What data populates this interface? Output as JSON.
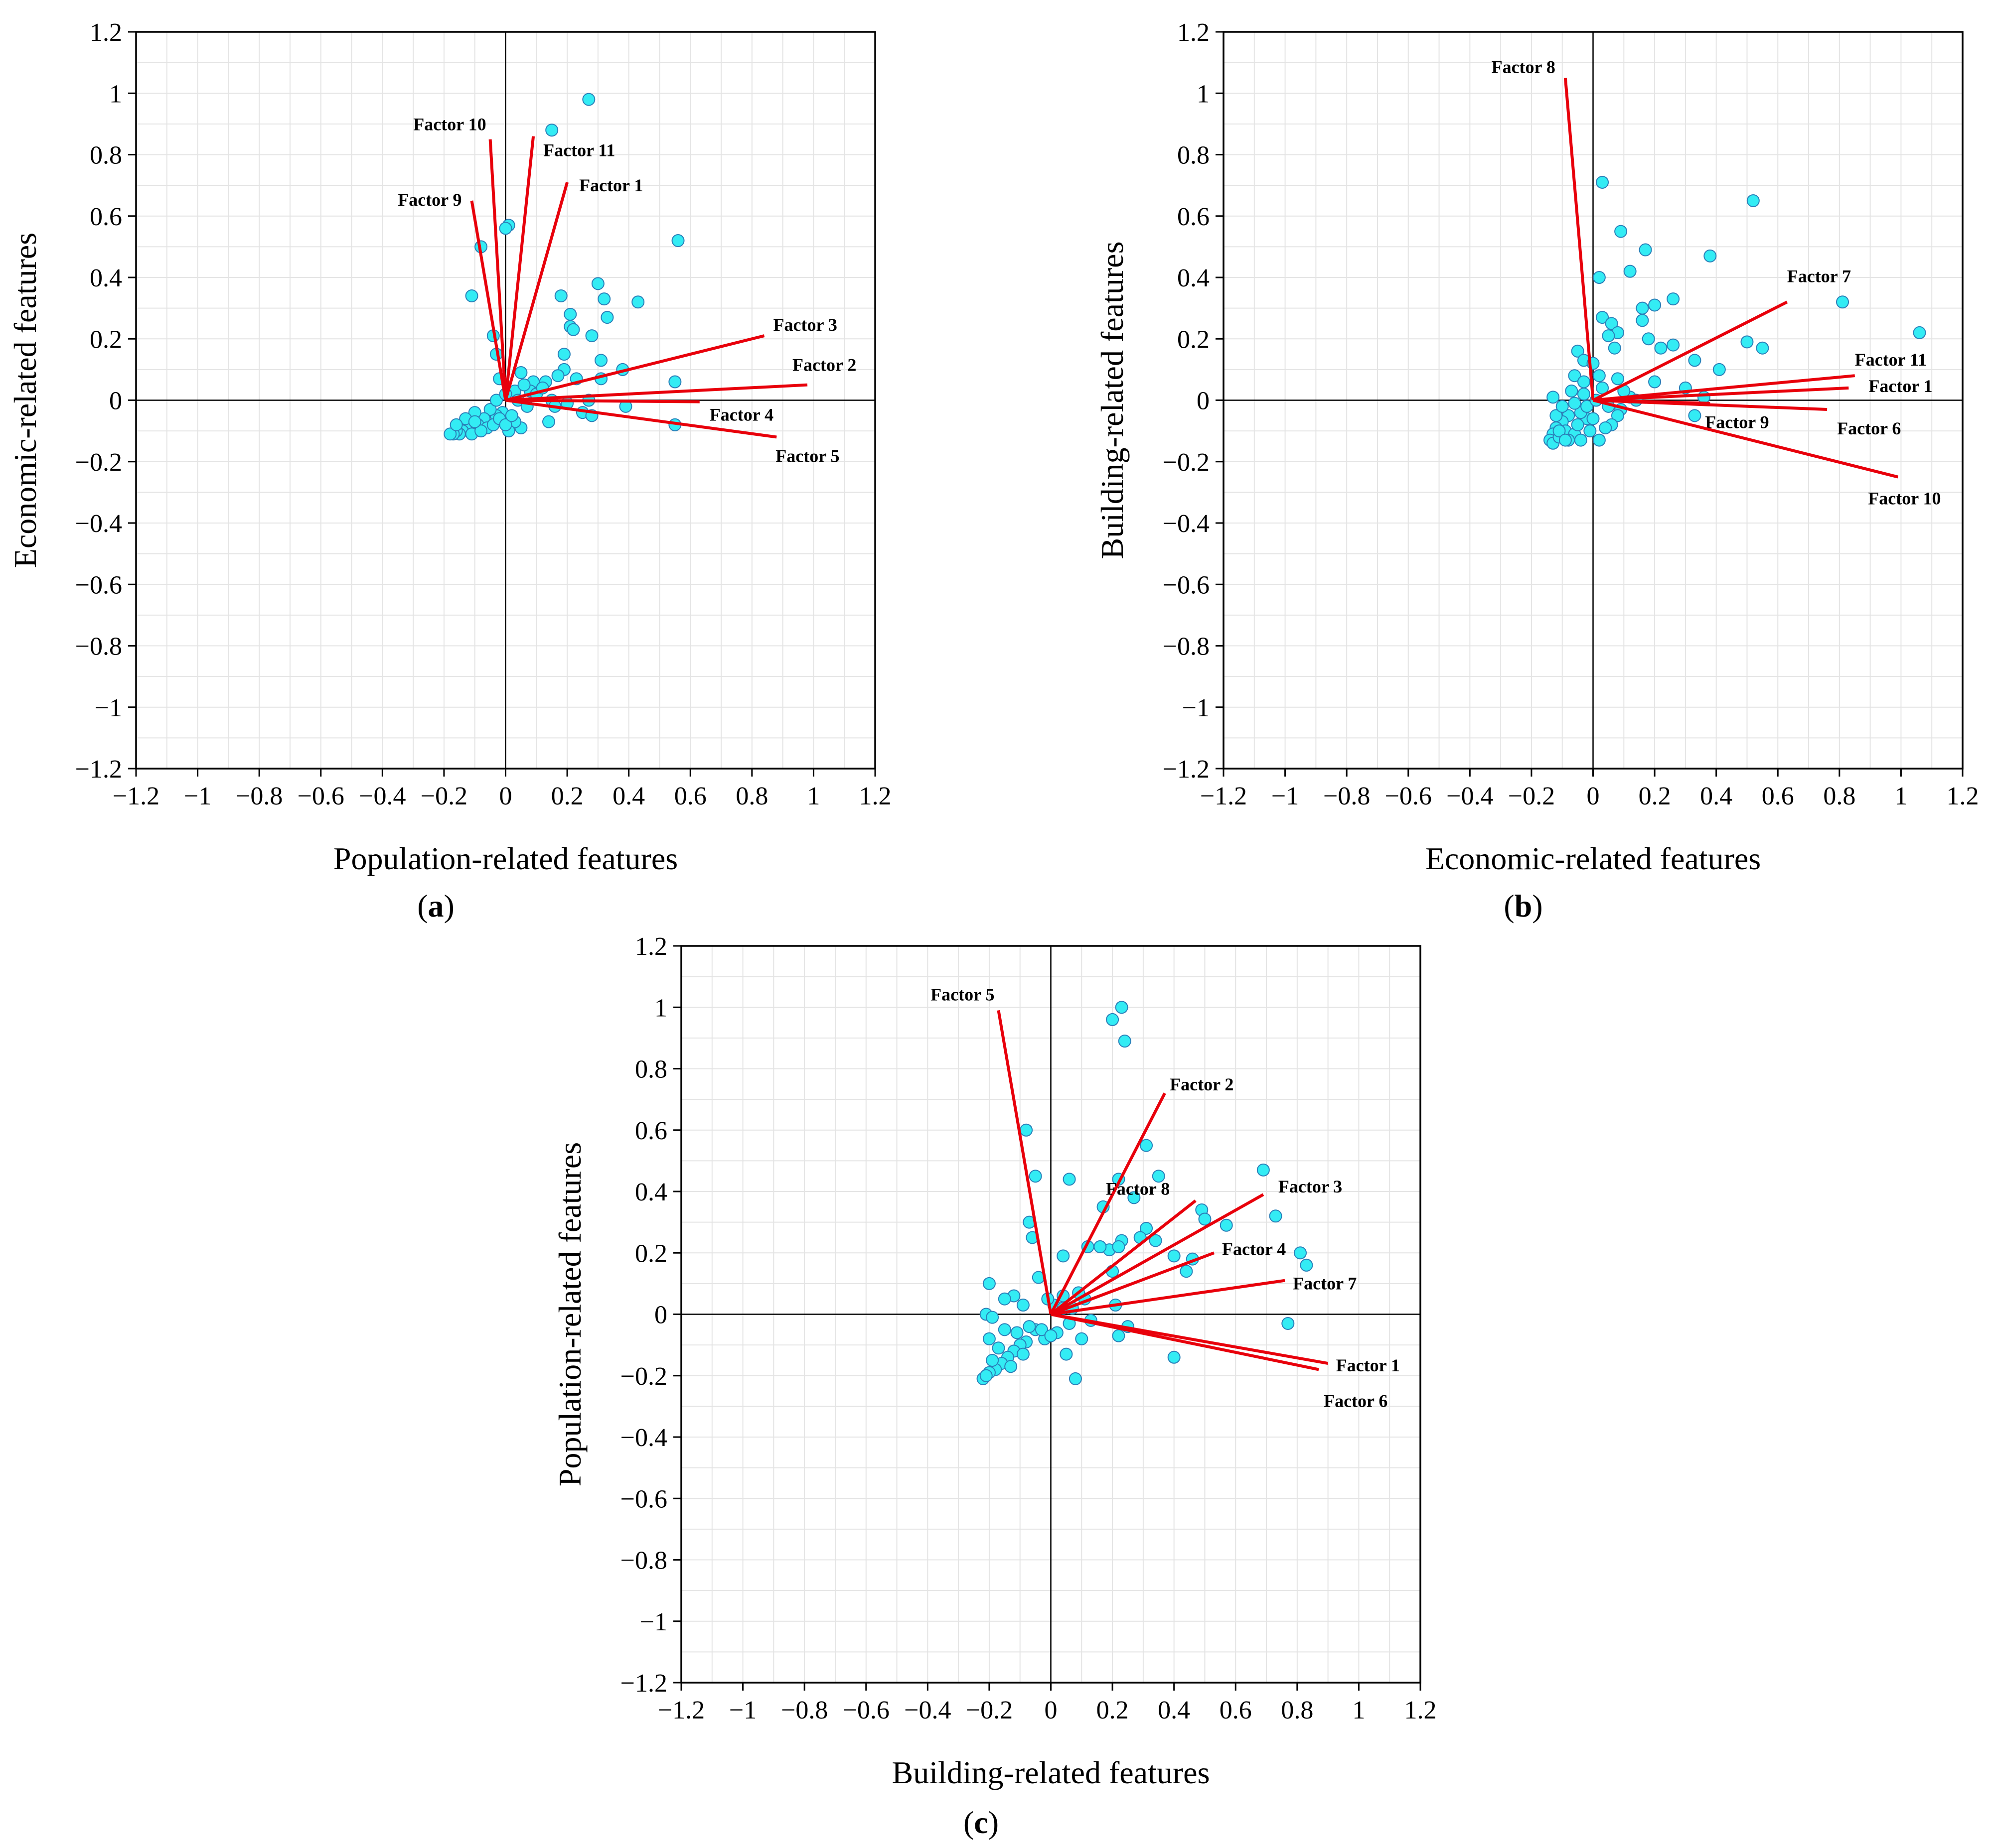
{
  "chart_data": [
    {
      "type": "scatter",
      "panel": "a",
      "panel_label": "a",
      "xlabel": "Population-related features",
      "ylabel": "Economic-related features",
      "xlim": [
        -1.2,
        1.2
      ],
      "ylim": [
        -1.2,
        1.2
      ],
      "ticks": [
        -1.2,
        -1,
        -0.8,
        -0.6,
        -0.4,
        -0.2,
        0,
        0.2,
        0.4,
        0.6,
        0.8,
        1,
        1.2
      ],
      "tick_labels": [
        "−1.2",
        "−1",
        "−0.8",
        "−0.6",
        "−0.4",
        "−0.2",
        "0",
        "0.2",
        "0.4",
        "0.6",
        "0.8",
        "1",
        "1.2"
      ],
      "grid": true,
      "vectors": [
        {
          "name": "Factor 10",
          "x": -0.05,
          "y": 0.85
        },
        {
          "name": "Factor 11",
          "x": 0.09,
          "y": 0.86
        },
        {
          "name": "Factor 1",
          "x": 0.2,
          "y": 0.71
        },
        {
          "name": "Factor 9",
          "x": -0.11,
          "y": 0.65
        },
        {
          "name": "Factor 3",
          "x": 0.84,
          "y": 0.21
        },
        {
          "name": "Factor 2",
          "x": 0.98,
          "y": 0.05
        },
        {
          "name": "Factor 4",
          "x": 0.63,
          "y": -0.005
        },
        {
          "name": "Factor 5",
          "x": 0.88,
          "y": -0.12
        }
      ],
      "points": [
        [
          0.27,
          0.98
        ],
        [
          0.15,
          0.88
        ],
        [
          0.01,
          0.57
        ],
        [
          0.0,
          0.56
        ],
        [
          0.56,
          0.52
        ],
        [
          -0.08,
          0.5
        ],
        [
          0.3,
          0.38
        ],
        [
          -0.11,
          0.34
        ],
        [
          0.18,
          0.34
        ],
        [
          0.32,
          0.33
        ],
        [
          0.43,
          0.32
        ],
        [
          0.21,
          0.28
        ],
        [
          0.33,
          0.27
        ],
        [
          0.21,
          0.24
        ],
        [
          0.22,
          0.23
        ],
        [
          -0.04,
          0.21
        ],
        [
          0.28,
          0.21
        ],
        [
          0.19,
          0.15
        ],
        [
          -0.03,
          0.15
        ],
        [
          0.31,
          0.13
        ],
        [
          0.38,
          0.1
        ],
        [
          0.19,
          0.1
        ],
        [
          0.17,
          0.08
        ],
        [
          0.05,
          0.09
        ],
        [
          0.09,
          0.06
        ],
        [
          0.13,
          0.06
        ],
        [
          0.23,
          0.07
        ],
        [
          0.31,
          0.07
        ],
        [
          0.55,
          0.06
        ],
        [
          -0.02,
          0.07
        ],
        [
          0.08,
          0.03
        ],
        [
          0.03,
          0.03
        ],
        [
          0.1,
          0.02
        ],
        [
          0.15,
          0.0
        ],
        [
          0.27,
          0.0
        ],
        [
          0.39,
          -0.02
        ],
        [
          0.25,
          -0.04
        ],
        [
          0.28,
          -0.05
        ],
        [
          0.14,
          -0.07
        ],
        [
          0.55,
          -0.08
        ],
        [
          0.05,
          -0.09
        ],
        [
          0.03,
          -0.07
        ],
        [
          0.01,
          -0.1
        ],
        [
          -0.01,
          -0.04
        ],
        [
          -0.03,
          -0.05
        ],
        [
          -0.05,
          -0.03
        ],
        [
          -0.07,
          -0.06
        ],
        [
          -0.09,
          -0.08
        ],
        [
          -0.1,
          -0.04
        ],
        [
          -0.12,
          -0.07
        ],
        [
          -0.13,
          -0.09
        ],
        [
          -0.14,
          -0.1
        ],
        [
          -0.15,
          -0.11
        ],
        [
          -0.16,
          -0.1
        ],
        [
          -0.17,
          -0.11
        ],
        [
          -0.18,
          -0.11
        ],
        [
          -0.11,
          -0.11
        ],
        [
          -0.06,
          -0.09
        ],
        [
          -0.04,
          -0.08
        ],
        [
          -0.02,
          -0.06
        ],
        [
          0.0,
          -0.08
        ],
        [
          0.02,
          -0.05
        ],
        [
          -0.08,
          -0.1
        ],
        [
          -0.13,
          -0.06
        ],
        [
          -0.16,
          -0.08
        ],
        [
          -0.1,
          -0.07
        ],
        [
          0.06,
          0.05
        ],
        [
          0.12,
          0.04
        ],
        [
          0.04,
          0.0
        ],
        [
          -0.03,
          0.0
        ],
        [
          0.0,
          0.02
        ],
        [
          0.07,
          -0.02
        ],
        [
          0.16,
          -0.02
        ],
        [
          0.2,
          -0.01
        ]
      ]
    },
    {
      "type": "scatter",
      "panel": "b",
      "panel_label": "b",
      "xlabel": "Economic-related features",
      "ylabel": "Building-related features",
      "xlim": [
        -1.2,
        1.2
      ],
      "ylim": [
        -1.2,
        1.2
      ],
      "ticks": [
        -1.2,
        -1,
        -0.8,
        -0.6,
        -0.4,
        -0.2,
        0,
        0.2,
        0.4,
        0.6,
        0.8,
        1,
        1.2
      ],
      "tick_labels": [
        "−1.2",
        "−1",
        "−0.8",
        "−0.6",
        "−0.4",
        "−0.2",
        "0",
        "0.2",
        "0.4",
        "0.6",
        "0.8",
        "1",
        "1.2"
      ],
      "grid": true,
      "vectors": [
        {
          "name": "Factor 8",
          "x": -0.09,
          "y": 1.05
        },
        {
          "name": "Factor 7",
          "x": 0.63,
          "y": 0.32
        },
        {
          "name": "Factor 11",
          "x": 0.85,
          "y": 0.08
        },
        {
          "name": "Factor 1",
          "x": 0.83,
          "y": 0.04
        },
        {
          "name": "Factor 9",
          "x": 0.38,
          "y": -0.01
        },
        {
          "name": "Factor 6",
          "x": 0.76,
          "y": -0.03
        },
        {
          "name": "Factor 10",
          "x": 0.99,
          "y": -0.25
        }
      ],
      "points": [
        [
          0.03,
          0.71
        ],
        [
          0.52,
          0.65
        ],
        [
          0.09,
          0.55
        ],
        [
          0.17,
          0.49
        ],
        [
          0.38,
          0.47
        ],
        [
          0.02,
          0.4
        ],
        [
          0.12,
          0.42
        ],
        [
          0.81,
          0.32
        ],
        [
          0.26,
          0.33
        ],
        [
          0.2,
          0.31
        ],
        [
          0.16,
          0.3
        ],
        [
          0.03,
          0.27
        ],
        [
          0.06,
          0.25
        ],
        [
          1.06,
          0.22
        ],
        [
          0.08,
          0.22
        ],
        [
          0.16,
          0.26
        ],
        [
          0.05,
          0.21
        ],
        [
          0.18,
          0.2
        ],
        [
          0.5,
          0.19
        ],
        [
          0.55,
          0.17
        ],
        [
          0.22,
          0.17
        ],
        [
          0.26,
          0.18
        ],
        [
          0.07,
          0.17
        ],
        [
          -0.05,
          0.16
        ],
        [
          -0.03,
          0.13
        ],
        [
          0.0,
          0.12
        ],
        [
          0.41,
          0.1
        ],
        [
          -0.06,
          0.08
        ],
        [
          0.02,
          0.08
        ],
        [
          -0.03,
          0.06
        ],
        [
          0.2,
          0.06
        ],
        [
          0.08,
          0.07
        ],
        [
          0.03,
          0.04
        ],
        [
          0.3,
          0.04
        ],
        [
          0.33,
          0.13
        ],
        [
          0.12,
          0.01
        ],
        [
          0.36,
          0.01
        ],
        [
          -0.13,
          0.01
        ],
        [
          0.05,
          -0.02
        ],
        [
          0.09,
          -0.03
        ],
        [
          0.08,
          -0.05
        ],
        [
          0.33,
          -0.05
        ],
        [
          0.06,
          -0.08
        ],
        [
          -0.02,
          -0.06
        ],
        [
          0.04,
          -0.09
        ],
        [
          -0.04,
          -0.04
        ],
        [
          -0.08,
          -0.05
        ],
        [
          -0.1,
          -0.07
        ],
        [
          -0.12,
          -0.09
        ],
        [
          -0.13,
          -0.11
        ],
        [
          -0.14,
          -0.13
        ],
        [
          -0.13,
          -0.14
        ],
        [
          -0.11,
          -0.12
        ],
        [
          -0.09,
          -0.1
        ],
        [
          -0.06,
          -0.11
        ],
        [
          -0.04,
          -0.13
        ],
        [
          0.02,
          -0.13
        ],
        [
          -0.01,
          -0.1
        ],
        [
          0.0,
          -0.06
        ],
        [
          -0.05,
          -0.08
        ],
        [
          -0.08,
          -0.13
        ],
        [
          -0.12,
          -0.05
        ],
        [
          -0.1,
          -0.02
        ],
        [
          -0.06,
          -0.01
        ],
        [
          -0.03,
          0.02
        ],
        [
          -0.02,
          -0.02
        ],
        [
          -0.07,
          0.03
        ],
        [
          -0.11,
          -0.1
        ],
        [
          -0.09,
          -0.13
        ],
        [
          0.1,
          0.03
        ],
        [
          0.14,
          0.0
        ],
        [
          0.01,
          0.0
        ]
      ]
    },
    {
      "type": "scatter",
      "panel": "c",
      "panel_label": "c",
      "xlabel": "Building-related features",
      "ylabel": "Population-related features",
      "xlim": [
        -1.2,
        1.2
      ],
      "ylim": [
        -1.2,
        1.2
      ],
      "ticks": [
        -1.2,
        -1,
        -0.8,
        -0.6,
        -0.4,
        -0.2,
        0,
        0.2,
        0.4,
        0.6,
        0.8,
        1,
        1.2
      ],
      "tick_labels": [
        "−1.2",
        "−1",
        "−0.8",
        "−0.6",
        "−0.4",
        "−0.2",
        "0",
        "0.2",
        "0.4",
        "0.6",
        "0.8",
        "1",
        "1.2"
      ],
      "grid": true,
      "vectors": [
        {
          "name": "Factor 5",
          "x": -0.17,
          "y": 0.99
        },
        {
          "name": "Factor 2",
          "x": 0.37,
          "y": 0.72
        },
        {
          "name": "Factor 8",
          "x": 0.47,
          "y": 0.37
        },
        {
          "name": "Factor 3",
          "x": 0.69,
          "y": 0.39
        },
        {
          "name": "Factor 4",
          "x": 0.53,
          "y": 0.2
        },
        {
          "name": "Factor 7",
          "x": 0.76,
          "y": 0.11
        },
        {
          "name": "Factor 1",
          "x": 0.9,
          "y": -0.16
        },
        {
          "name": "Factor 6",
          "x": 0.87,
          "y": -0.18
        }
      ],
      "points": [
        [
          0.23,
          1.0
        ],
        [
          0.2,
          0.96
        ],
        [
          0.24,
          0.89
        ],
        [
          -0.08,
          0.6
        ],
        [
          0.31,
          0.55
        ],
        [
          -0.05,
          0.45
        ],
        [
          0.06,
          0.44
        ],
        [
          0.22,
          0.44
        ],
        [
          0.35,
          0.45
        ],
        [
          0.69,
          0.47
        ],
        [
          0.27,
          0.38
        ],
        [
          0.17,
          0.35
        ],
        [
          0.49,
          0.34
        ],
        [
          0.5,
          0.31
        ],
        [
          0.73,
          0.32
        ],
        [
          -0.07,
          0.3
        ],
        [
          0.57,
          0.29
        ],
        [
          -0.06,
          0.25
        ],
        [
          0.31,
          0.28
        ],
        [
          0.23,
          0.24
        ],
        [
          0.34,
          0.24
        ],
        [
          0.29,
          0.25
        ],
        [
          0.19,
          0.21
        ],
        [
          0.4,
          0.19
        ],
        [
          0.46,
          0.18
        ],
        [
          0.81,
          0.2
        ],
        [
          0.83,
          0.16
        ],
        [
          0.22,
          0.22
        ],
        [
          0.16,
          0.22
        ],
        [
          0.12,
          0.22
        ],
        [
          0.04,
          0.19
        ],
        [
          0.2,
          0.14
        ],
        [
          0.44,
          0.14
        ],
        [
          -0.04,
          0.12
        ],
        [
          0.11,
          0.05
        ],
        [
          0.09,
          0.07
        ],
        [
          0.04,
          0.06
        ],
        [
          -0.2,
          0.1
        ],
        [
          -0.12,
          0.06
        ],
        [
          -0.15,
          0.05
        ],
        [
          -0.09,
          0.03
        ],
        [
          -0.21,
          0.0
        ],
        [
          -0.19,
          -0.01
        ],
        [
          0.01,
          0.03
        ],
        [
          0.21,
          0.03
        ],
        [
          0.25,
          -0.04
        ],
        [
          0.22,
          -0.07
        ],
        [
          0.77,
          -0.03
        ],
        [
          0.4,
          -0.14
        ],
        [
          0.08,
          -0.21
        ],
        [
          0.05,
          -0.13
        ],
        [
          0.1,
          -0.08
        ],
        [
          0.02,
          -0.06
        ],
        [
          -0.02,
          -0.08
        ],
        [
          -0.05,
          -0.05
        ],
        [
          -0.08,
          -0.09
        ],
        [
          -0.1,
          -0.1
        ],
        [
          -0.12,
          -0.12
        ],
        [
          -0.14,
          -0.14
        ],
        [
          -0.16,
          -0.16
        ],
        [
          -0.18,
          -0.18
        ],
        [
          -0.2,
          -0.19
        ],
        [
          -0.22,
          -0.21
        ],
        [
          -0.21,
          -0.2
        ],
        [
          -0.19,
          -0.15
        ],
        [
          -0.17,
          -0.11
        ],
        [
          -0.2,
          -0.08
        ],
        [
          -0.15,
          -0.05
        ],
        [
          -0.11,
          -0.06
        ],
        [
          -0.07,
          -0.04
        ],
        [
          -0.03,
          -0.05
        ],
        [
          0.0,
          -0.07
        ],
        [
          0.06,
          -0.03
        ],
        [
          0.04,
          0.02
        ],
        [
          -0.01,
          0.05
        ],
        [
          -0.13,
          -0.17
        ],
        [
          -0.09,
          -0.13
        ],
        [
          0.13,
          -0.02
        ],
        [
          0.07,
          0.02
        ]
      ]
    }
  ]
}
